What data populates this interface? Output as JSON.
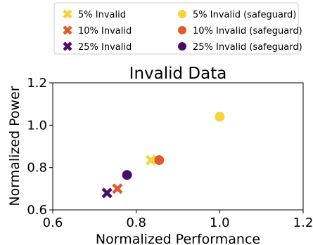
{
  "chart_data": {
    "type": "scatter",
    "title": "Invalid Data",
    "xlabel": "Normalized Performance",
    "ylabel": "Normalized Power",
    "xlim": [
      0.6,
      1.2
    ],
    "ylim": [
      0.6,
      1.2
    ],
    "xticks": [
      "0.6",
      "0.8",
      "1.0",
      "1.2"
    ],
    "yticks": [
      "0.6",
      "0.8",
      "1.0",
      "1.2"
    ],
    "grid": false,
    "legend_position": "above",
    "series": [
      {
        "name": "5% Invalid",
        "marker": "x",
        "color": "#f5d43c",
        "points": [
          {
            "x": 0.835,
            "y": 0.835
          }
        ]
      },
      {
        "name": "10% Invalid",
        "marker": "x",
        "color": "#e05a2b",
        "points": [
          {
            "x": 0.755,
            "y": 0.7
          }
        ]
      },
      {
        "name": "25% Invalid",
        "marker": "x",
        "color": "#4a0c6b",
        "points": [
          {
            "x": 0.73,
            "y": 0.68
          }
        ]
      },
      {
        "name": "5% Invalid (safeguard)",
        "marker": "circle",
        "color": "#f5d43c",
        "points": [
          {
            "x": 1.0,
            "y": 1.04
          }
        ]
      },
      {
        "name": "10% Invalid (safeguard)",
        "marker": "circle",
        "color": "#e05a2b",
        "points": [
          {
            "x": 0.855,
            "y": 0.835
          }
        ]
      },
      {
        "name": "25% Invalid (safeguard)",
        "marker": "circle",
        "color": "#4a0c6b",
        "points": [
          {
            "x": 0.778,
            "y": 0.765
          }
        ]
      }
    ]
  }
}
